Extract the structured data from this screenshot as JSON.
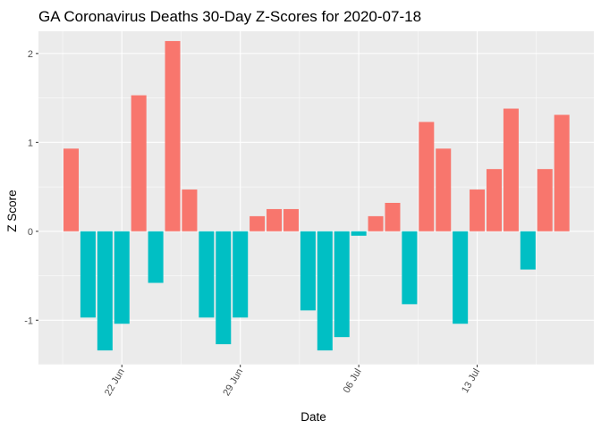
{
  "chart_data": {
    "type": "bar",
    "title": "GA Coronavirus Deaths 30-Day Z-Scores for 2020-07-18",
    "xlabel": "Date",
    "ylabel": "Z Score",
    "ylim": [
      -1.5,
      2.25
    ],
    "yticks": [
      -1,
      0,
      1,
      2
    ],
    "x_tick_labels": [
      {
        "date": "2020-06-22",
        "label": "22 Jun"
      },
      {
        "date": "2020-06-29",
        "label": "29 Jun"
      },
      {
        "date": "2020-07-06",
        "label": "06 Jul"
      },
      {
        "date": "2020-07-13",
        "label": "13 Jul"
      }
    ],
    "grid": true,
    "legend": "none",
    "colors": {
      "positive": "#F8766D",
      "negative": "#00BFC4",
      "panel": "#EBEBEB",
      "grid": "#FFFFFF"
    },
    "dates": [
      "2020-06-19",
      "2020-06-20",
      "2020-06-21",
      "2020-06-22",
      "2020-06-23",
      "2020-06-24",
      "2020-06-25",
      "2020-06-26",
      "2020-06-27",
      "2020-06-28",
      "2020-06-29",
      "2020-06-30",
      "2020-07-01",
      "2020-07-02",
      "2020-07-03",
      "2020-07-04",
      "2020-07-05",
      "2020-07-06",
      "2020-07-07",
      "2020-07-08",
      "2020-07-09",
      "2020-07-10",
      "2020-07-11",
      "2020-07-12",
      "2020-07-13",
      "2020-07-14",
      "2020-07-15",
      "2020-07-16",
      "2020-07-17",
      "2020-07-18"
    ],
    "values": [
      0.93,
      -0.97,
      -1.34,
      -1.04,
      1.53,
      -0.58,
      2.14,
      0.47,
      -0.97,
      -1.27,
      -0.97,
      0.17,
      0.25,
      0.25,
      -0.89,
      -1.34,
      -1.19,
      -0.05,
      0.17,
      0.32,
      -0.82,
      1.23,
      0.93,
      -1.04,
      0.47,
      0.7,
      1.38,
      -0.43,
      0.7,
      1.31
    ]
  }
}
